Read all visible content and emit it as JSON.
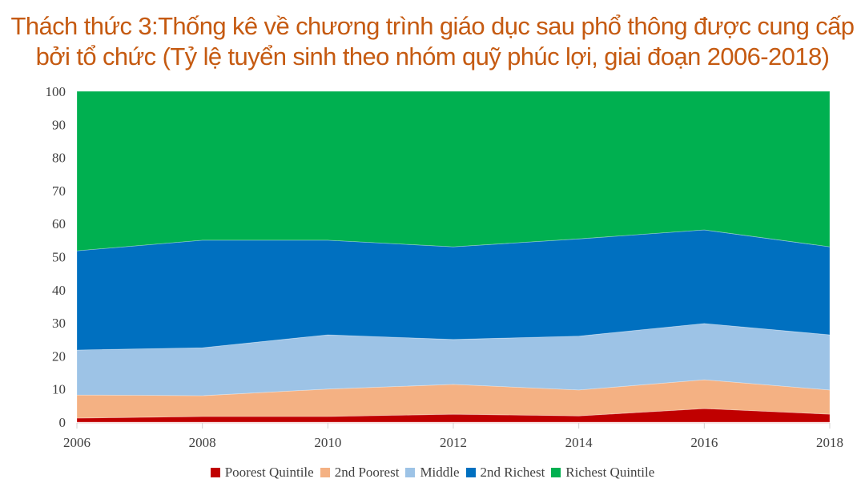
{
  "title": {
    "line1": "Thách thức 3:Thống kê về chương trình giáo dục sau phổ thông được cung cấp",
    "line2": "bởi tổ chức (Tỷ lệ tuyển sinh theo nhóm quỹ phúc lợi, giai đoạn 2006-2018)",
    "color": "#c55a11"
  },
  "chart_data": {
    "type": "area",
    "stacked": true,
    "title": "Thách thức 3:Thống kê về chương trình giáo dục sau phổ thông được cung cấp bởi tổ chức (Tỷ lệ tuyển sinh theo nhóm quỹ phúc lợi, giai đoạn 2006-2018)",
    "xlabel": "",
    "ylabel": "",
    "x": [
      2006,
      2008,
      2010,
      2012,
      2014,
      2016,
      2018
    ],
    "x_tick_labels": [
      "2006",
      "2008",
      "2010",
      "2012",
      "2014",
      "2016",
      "2018"
    ],
    "y_tick_labels": [
      "0",
      "10",
      "20",
      "30",
      "40",
      "50",
      "60",
      "70",
      "80",
      "90",
      "100"
    ],
    "ylim": [
      0,
      100
    ],
    "grid": false,
    "legend_position": "bottom",
    "series": [
      {
        "name": "Poorest Quintile",
        "color": "#c00000",
        "values": [
          1.2,
          1.7,
          1.7,
          2.4,
          1.9,
          4.1,
          2.4
        ]
      },
      {
        "name": "2nd Poorest",
        "color": "#f4b183",
        "values": [
          7.0,
          6.3,
          8.3,
          9.0,
          7.8,
          8.7,
          7.3
        ]
      },
      {
        "name": "Middle",
        "color": "#9dc3e6",
        "values": [
          13.6,
          14.5,
          16.4,
          13.6,
          16.3,
          17.0,
          16.7
        ]
      },
      {
        "name": "2nd Richest",
        "color": "#0070c0",
        "values": [
          30.0,
          32.5,
          28.6,
          28.0,
          29.4,
          28.3,
          26.6
        ]
      },
      {
        "name": "Richest Quintile",
        "color": "#00b050",
        "values": [
          48.2,
          45.0,
          45.0,
          47.0,
          44.6,
          41.9,
          47.0
        ]
      }
    ]
  },
  "legend": {
    "items": [
      {
        "label": "Poorest Quintile",
        "color": "#c00000"
      },
      {
        "label": "2nd Poorest",
        "color": "#f4b183"
      },
      {
        "label": "Middle",
        "color": "#9dc3e6"
      },
      {
        "label": "2nd Richest",
        "color": "#0070c0"
      },
      {
        "label": "Richest Quintile",
        "color": "#00b050"
      }
    ]
  }
}
